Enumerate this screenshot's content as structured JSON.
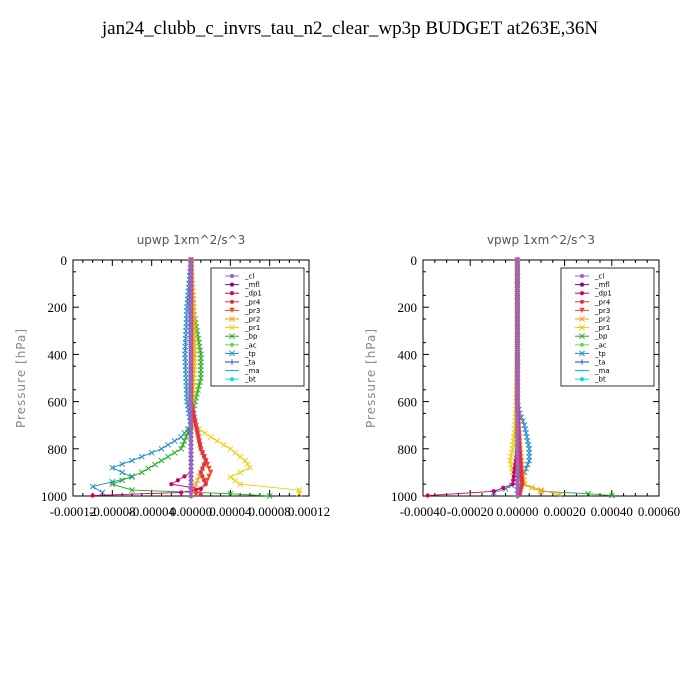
{
  "figure_title": "jan24_clubb_c_invrs_tau_n2_clear_wp3p  BUDGET at263E,36N",
  "chart_data": [
    {
      "type": "line",
      "title": "upwp   1xm^2/s^3",
      "ylabel": "Pressure [hPa]",
      "xlabel": "",
      "xlim": [
        -0.00012,
        0.00012
      ],
      "ylim": [
        1000,
        0
      ],
      "xtick_labels": [
        "-0.00012",
        "-0.00008",
        "-0.00004",
        "0.00000",
        "0.00004",
        "0.00008",
        "0.00012"
      ],
      "xtick_values": [
        -0.00012,
        -8e-05,
        -4e-05,
        0,
        4e-05,
        8e-05,
        0.00012
      ],
      "ytick_values": [
        0,
        200,
        400,
        600,
        800,
        1000
      ],
      "legend_position": "top-right",
      "grid": false,
      "series": [
        {
          "name": "_cl",
          "color": "#9966cc",
          "marker": "o",
          "x": [
            0,
            0,
            0,
            0,
            0,
            0
          ],
          "y": [
            0,
            200,
            400,
            600,
            800,
            1000
          ]
        },
        {
          "name": "_mfl",
          "color": "#990099",
          "marker": "o",
          "x": [
            0,
            0,
            0,
            0,
            0,
            0
          ],
          "y": [
            0,
            200,
            400,
            600,
            800,
            1000
          ]
        },
        {
          "name": "_dp1",
          "color": "#cc0066",
          "marker": "o",
          "x": [
            0,
            0,
            0,
            0,
            0,
            0,
            0,
            -2e-05,
            1e-05,
            -1e-05,
            -0.0001
          ],
          "y": [
            0,
            200,
            400,
            600,
            700,
            800,
            900,
            950,
            970,
            985,
            998
          ]
        },
        {
          "name": "_pr4",
          "color": "#dd3344",
          "marker": "o",
          "x": [
            0,
            0,
            0,
            0,
            5e-06,
            1e-05,
            1.5e-05,
            1e-05,
            1.5e-05,
            5e-06,
            1e-05
          ],
          "y": [
            0,
            200,
            400,
            600,
            700,
            800,
            850,
            900,
            950,
            975,
            995
          ]
        },
        {
          "name": "_pr3",
          "color": "#ff4422",
          "marker": "v",
          "x": [
            0,
            0,
            0,
            0,
            5e-06,
            1e-05,
            1.5e-05,
            2e-05,
            1.5e-05,
            1e-05,
            5e-06
          ],
          "y": [
            0,
            200,
            400,
            600,
            700,
            800,
            850,
            900,
            950,
            975,
            995
          ]
        },
        {
          "name": "_pr2",
          "color": "#ff9922",
          "marker": "x",
          "x": [
            0,
            2e-06,
            2e-06,
            0,
            5e-06,
            1e-05,
            1.5e-05,
            1e-05,
            5e-06,
            0
          ],
          "y": [
            0,
            200,
            400,
            600,
            700,
            800,
            850,
            900,
            950,
            995
          ]
        },
        {
          "name": "_pr1",
          "color": "#eecc00",
          "marker": "x",
          "x": [
            0,
            3e-06,
            4e-06,
            2e-06,
            2e-06,
            2e-05,
            4e-05,
            5.5e-05,
            6e-05,
            4e-05,
            5e-05,
            0.00011,
            0.00011
          ],
          "y": [
            0,
            200,
            400,
            600,
            700,
            750,
            800,
            850,
            880,
            920,
            950,
            975,
            990
          ]
        },
        {
          "name": "_bp",
          "color": "#22aa22",
          "marker": "x",
          "x": [
            0,
            2e-06,
            1e-05,
            1e-05,
            4e-06,
            0,
            -1e-05,
            -3e-05,
            -5e-05,
            -8e-05,
            -6e-05,
            4e-05,
            8e-05
          ],
          "y": [
            0,
            200,
            400,
            500,
            600,
            700,
            800,
            850,
            900,
            950,
            975,
            990,
            1000
          ]
        },
        {
          "name": "_ac",
          "color": "#66dd44",
          "marker": "o",
          "x": [
            0,
            0,
            0,
            0,
            0,
            0
          ],
          "y": [
            0,
            200,
            400,
            600,
            800,
            1000
          ]
        },
        {
          "name": "_tp",
          "color": "#2288cc",
          "marker": "x",
          "x": [
            0,
            -4e-06,
            -6e-06,
            -4e-06,
            0,
            -1e-05,
            -3e-05,
            -6e-05,
            -8e-05,
            -6e-05,
            -0.0001,
            -9e-05
          ],
          "y": [
            0,
            200,
            400,
            600,
            700,
            750,
            800,
            850,
            880,
            920,
            960,
            985
          ]
        },
        {
          "name": "_ta",
          "color": "#2244aa",
          "marker": "+",
          "x": [
            0,
            0,
            0,
            0,
            0,
            0
          ],
          "y": [
            0,
            200,
            400,
            600,
            800,
            1000
          ]
        },
        {
          "name": "_ma",
          "color": "#00bbcc",
          "marker": "-",
          "x": [
            0,
            0,
            0,
            0,
            0,
            0
          ],
          "y": [
            0,
            200,
            400,
            600,
            800,
            1000
          ]
        },
        {
          "name": "_bt",
          "color": "#00ddee",
          "marker": "o",
          "x": [
            0,
            0,
            0,
            0,
            0,
            0
          ],
          "y": [
            0,
            200,
            400,
            600,
            800,
            1000
          ]
        }
      ]
    },
    {
      "type": "line",
      "title": "vpwp   1xm^2/s^3",
      "ylabel": "Pressure [hPa]",
      "xlabel": "",
      "xlim": [
        -0.0004,
        0.0006
      ],
      "ylim": [
        1000,
        0
      ],
      "xtick_labels": [
        "-0.00040",
        "-0.00020",
        "0.00000",
        "0.00020",
        "0.00040",
        "0.00060"
      ],
      "xtick_values": [
        -0.0004,
        -0.0002,
        0,
        0.0002,
        0.0004,
        0.0006
      ],
      "ytick_values": [
        0,
        200,
        400,
        600,
        800,
        1000
      ],
      "legend_position": "top-right",
      "grid": false,
      "series": [
        {
          "name": "_cl",
          "color": "#9966cc",
          "marker": "o",
          "x": [
            0,
            0,
            0,
            0,
            0,
            0
          ],
          "y": [
            0,
            200,
            400,
            600,
            800,
            1000
          ]
        },
        {
          "name": "_mfl",
          "color": "#990099",
          "marker": "o",
          "x": [
            0,
            0,
            0,
            0,
            0,
            0
          ],
          "y": [
            0,
            200,
            400,
            600,
            800,
            1000
          ]
        },
        {
          "name": "_dp1",
          "color": "#cc0066",
          "marker": "o",
          "x": [
            0,
            0,
            0,
            0,
            0,
            -2e-05,
            -0.0001,
            -0.00038
          ],
          "y": [
            0,
            200,
            400,
            600,
            800,
            950,
            980,
            998
          ]
        },
        {
          "name": "_pr4",
          "color": "#dd3344",
          "marker": "o",
          "x": [
            0,
            0,
            0,
            0,
            1e-05,
            2e-05,
            1e-05
          ],
          "y": [
            0,
            200,
            400,
            600,
            800,
            950,
            995
          ]
        },
        {
          "name": "_pr3",
          "color": "#ff4422",
          "marker": "v",
          "x": [
            0,
            0,
            0,
            0,
            1e-05,
            2e-05,
            1e-05
          ],
          "y": [
            0,
            200,
            400,
            600,
            800,
            950,
            995
          ]
        },
        {
          "name": "_pr2",
          "color": "#ff9922",
          "marker": "x",
          "x": [
            0,
            0,
            0,
            0,
            1e-05,
            3e-05,
            0.0001,
            0.00018
          ],
          "y": [
            0,
            200,
            400,
            600,
            800,
            950,
            975,
            995
          ]
        },
        {
          "name": "_pr1",
          "color": "#eecc00",
          "marker": "x",
          "x": [
            0,
            0,
            0,
            -5e-06,
            -1e-05,
            -2e-05,
            -3e-05,
            -2e-05,
            2e-05,
            0.0001
          ],
          "y": [
            0,
            200,
            400,
            600,
            700,
            800,
            850,
            900,
            950,
            980
          ]
        },
        {
          "name": "_bp",
          "color": "#22aa22",
          "marker": "x",
          "x": [
            0,
            0,
            0,
            0,
            0,
            2e-05,
            0.0001,
            0.0003,
            0.0004
          ],
          "y": [
            0,
            200,
            400,
            600,
            800,
            950,
            980,
            990,
            998
          ]
        },
        {
          "name": "_ac",
          "color": "#66dd44",
          "marker": "o",
          "x": [
            0,
            0,
            0,
            0,
            0,
            0
          ],
          "y": [
            0,
            200,
            400,
            600,
            800,
            1000
          ]
        },
        {
          "name": "_tp",
          "color": "#2288cc",
          "marker": "x",
          "x": [
            0,
            0,
            0,
            0,
            1e-05,
            3e-05,
            4e-05,
            5e-05,
            5e-05,
            3e-05,
            0,
            -5e-05,
            -0.0001
          ],
          "y": [
            0,
            200,
            400,
            600,
            650,
            700,
            750,
            800,
            850,
            900,
            940,
            970,
            985
          ]
        },
        {
          "name": "_ta",
          "color": "#2244aa",
          "marker": "+",
          "x": [
            0,
            0,
            0,
            0,
            0,
            0
          ],
          "y": [
            0,
            200,
            400,
            600,
            800,
            1000
          ]
        },
        {
          "name": "_ma",
          "color": "#00bbcc",
          "marker": "-",
          "x": [
            0,
            0,
            0,
            0,
            0,
            0
          ],
          "y": [
            0,
            200,
            400,
            600,
            800,
            1000
          ]
        },
        {
          "name": "_bt",
          "color": "#00ddee",
          "marker": "o",
          "x": [
            0,
            0,
            0,
            0,
            0,
            0
          ],
          "y": [
            0,
            200,
            400,
            600,
            800,
            1000
          ]
        }
      ]
    }
  ]
}
